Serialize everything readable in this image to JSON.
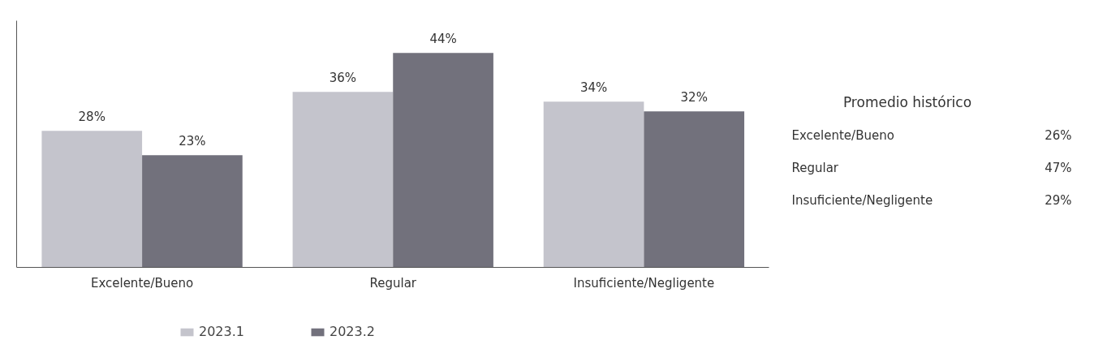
{
  "chart_data": [
    {
      "type": "bar",
      "categories": [
        "Excelente/Bueno",
        "Regular",
        "Insuficiente/Negligente"
      ],
      "series": [
        {
          "name": "2023.1",
          "color": "#c4c4cc",
          "values": [
            28,
            36,
            34
          ],
          "value_labels": [
            "28%",
            "36%",
            "34%"
          ]
        },
        {
          "name": "2023.2",
          "color": "#72717c",
          "values": [
            23,
            44,
            32
          ],
          "value_labels": [
            "23%",
            "44%",
            "32%"
          ]
        }
      ],
      "legend": "bottom"
    },
    {
      "type": "other",
      "title": "Promedio histórico",
      "categories": [
        "Excelente/Bueno",
        "Regular",
        "Insuficiente/Negligente"
      ],
      "value_labels": [
        "26%",
        "47%",
        "29%"
      ]
    }
  ]
}
